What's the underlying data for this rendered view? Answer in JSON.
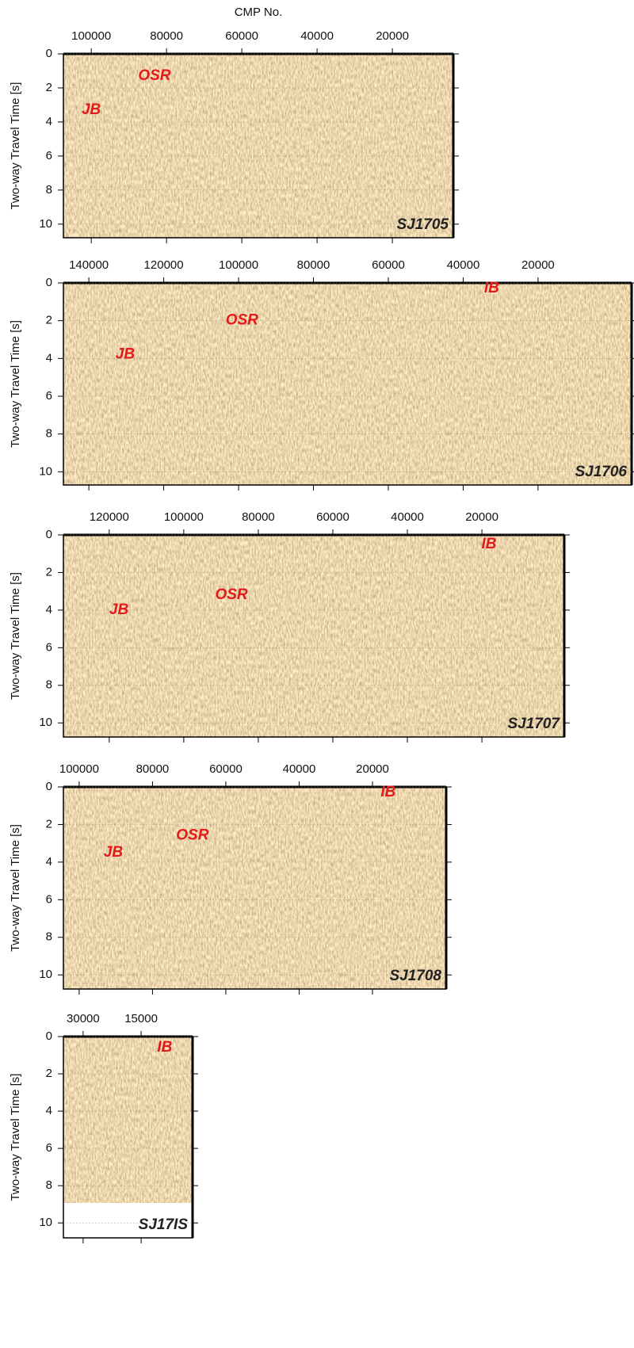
{
  "chart_data": [
    {
      "type": "seismic-section",
      "title": "SJ1705",
      "xlabel": "CMP No.",
      "ylabel": "Two-way Travel Time [s]",
      "xlim": [
        107400,
        3800
      ],
      "xticks": [
        100000,
        80000,
        60000,
        40000,
        20000
      ],
      "ylim": [
        0,
        10.8
      ],
      "yticks": [
        0,
        2,
        4,
        6,
        8,
        10
      ],
      "annotations": [
        {
          "text": "JB",
          "x": 100000,
          "y": 3.3
        },
        {
          "text": "OSR",
          "x": 83200,
          "y": 1.3
        }
      ]
    },
    {
      "type": "seismic-section",
      "title": "SJ1706",
      "ylabel": "Two-way Travel Time [s]",
      "xlim": [
        146800,
        -5000
      ],
      "xticks": [
        140000,
        120000,
        100000,
        80000,
        60000,
        40000,
        20000
      ],
      "ylim": [
        0,
        10.7
      ],
      "yticks": [
        0,
        2,
        4,
        6,
        8,
        10
      ],
      "annotations": [
        {
          "text": "JB",
          "x": 130300,
          "y": 3.8
        },
        {
          "text": "OSR",
          "x": 99100,
          "y": 2.0
        },
        {
          "text": "IB",
          "x": 32400,
          "y": 0.3
        }
      ]
    },
    {
      "type": "seismic-section",
      "title": "SJ1707",
      "ylabel": "Two-way Travel Time [s]",
      "xlim": [
        132300,
        -2100
      ],
      "xticks": [
        120000,
        100000,
        80000,
        60000,
        40000,
        20000
      ],
      "ylim": [
        0,
        10.75
      ],
      "yticks": [
        0,
        2,
        4,
        6,
        8,
        10
      ],
      "annotations": [
        {
          "text": "JB",
          "x": 117400,
          "y": 4.0
        },
        {
          "text": "OSR",
          "x": 87200,
          "y": 3.2
        },
        {
          "text": "IB",
          "x": 18100,
          "y": 0.5
        }
      ]
    },
    {
      "type": "seismic-section",
      "title": "SJ1708",
      "ylabel": "Two-way Travel Time [s]",
      "xlim": [
        104300,
        -100
      ],
      "xticks": [
        100000,
        80000,
        60000,
        40000,
        20000
      ],
      "ylim": [
        0,
        10.75
      ],
      "yticks": [
        0,
        2,
        4,
        6,
        8,
        10
      ],
      "annotations": [
        {
          "text": "JB",
          "x": 90700,
          "y": 3.5
        },
        {
          "text": "OSR",
          "x": 69100,
          "y": 2.6
        },
        {
          "text": "IB",
          "x": 15700,
          "y": 0.3
        }
      ]
    },
    {
      "type": "seismic-section",
      "title": "SJ17IS",
      "ylabel": "Two-way Travel Time [s]",
      "xlim": [
        35100,
        1700
      ],
      "xticks": [
        30000,
        15000
      ],
      "ylim": [
        0,
        10.8
      ],
      "yticks": [
        0,
        2,
        4,
        6,
        8,
        10
      ],
      "annotations": [
        {
          "text": "IB",
          "x": 8900,
          "y": 0.6
        }
      ]
    }
  ]
}
